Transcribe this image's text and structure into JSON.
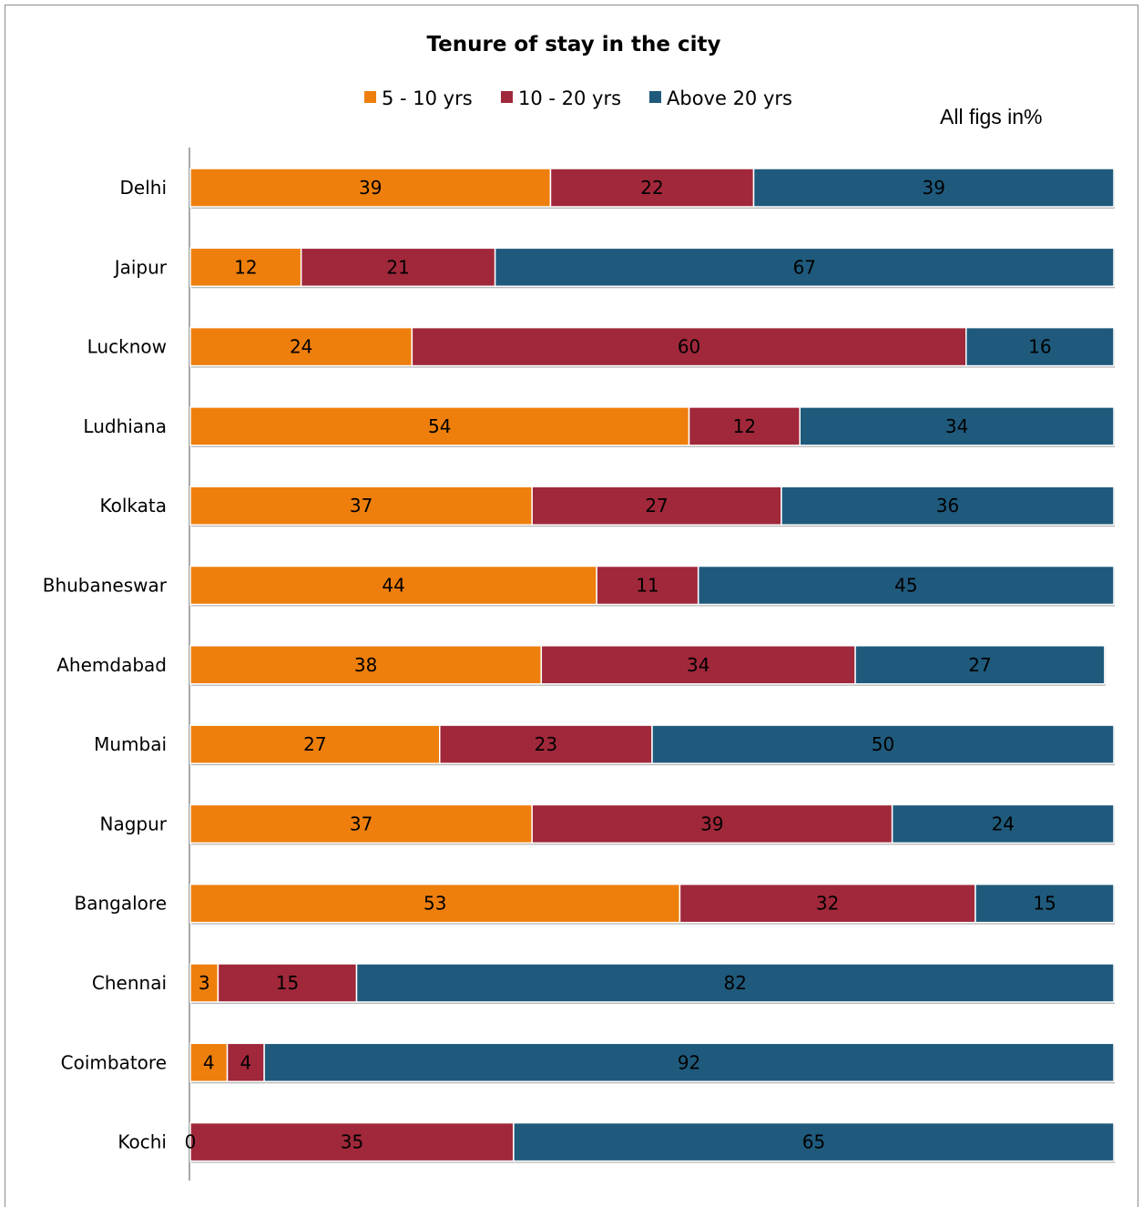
{
  "chart_data": {
    "type": "bar",
    "orientation": "horizontal",
    "stacked": true,
    "title": "Tenure of stay in the city",
    "note": "All figs in%",
    "legend_position": "top",
    "categories": [
      "Delhi",
      "Jaipur",
      "Lucknow",
      "Ludhiana",
      "Kolkata",
      "Bhubaneswar",
      "Ahemdabad",
      "Mumbai",
      "Nagpur",
      "Bangalore",
      "Chennai",
      "Coimbatore",
      "Kochi"
    ],
    "series": [
      {
        "name": "5 - 10 yrs",
        "color": "#ee7f0d",
        "values": [
          39,
          12,
          24,
          54,
          37,
          44,
          38,
          27,
          37,
          53,
          3,
          4,
          0
        ]
      },
      {
        "name": "10 - 20 yrs",
        "color": "#a0283a",
        "values": [
          22,
          21,
          60,
          12,
          27,
          11,
          34,
          23,
          39,
          32,
          15,
          4,
          35
        ]
      },
      {
        "name": "Above 20 yrs",
        "color": "#1f5a7c",
        "values": [
          39,
          67,
          16,
          34,
          36,
          45,
          27,
          50,
          24,
          15,
          82,
          92,
          65
        ]
      }
    ],
    "xlim": [
      0,
      100
    ],
    "grid": false
  }
}
